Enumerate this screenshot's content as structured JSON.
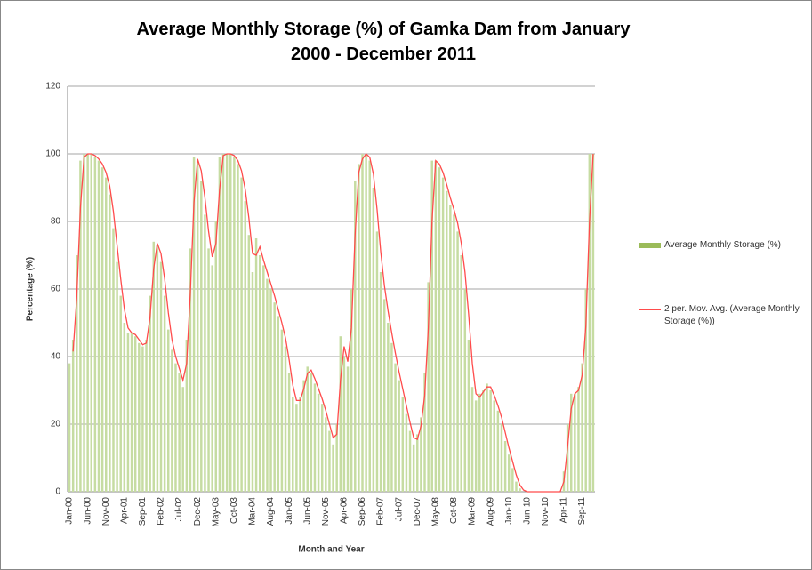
{
  "chart_data": {
    "type": "bar",
    "title": "Average Monthly Storage (%) of Gamka Dam from January 2000 - December 2011",
    "x_label": "Month and Year",
    "y_label": "Percentage (%)",
    "categories": [
      "Jan-00",
      null,
      null,
      null,
      null,
      "Jun-00",
      null,
      null,
      null,
      null,
      "Nov-00",
      null,
      null,
      null,
      null,
      "Apr-01",
      null,
      null,
      null,
      null,
      "Sep-01",
      null,
      null,
      null,
      null,
      "Feb-02",
      null,
      null,
      null,
      null,
      "Jul-02",
      null,
      null,
      null,
      null,
      "Dec-02",
      null,
      null,
      null,
      null,
      "May-03",
      null,
      null,
      null,
      null,
      "Oct-03",
      null,
      null,
      null,
      null,
      "Mar-04",
      null,
      null,
      null,
      null,
      "Aug-04",
      null,
      null,
      null,
      null,
      "Jan-05",
      null,
      null,
      null,
      null,
      "Jun-05",
      null,
      null,
      null,
      null,
      "Nov-05",
      null,
      null,
      null,
      null,
      "Apr-06",
      null,
      null,
      null,
      null,
      "Sep-06",
      null,
      null,
      null,
      null,
      "Feb-07",
      null,
      null,
      null,
      null,
      "Jul-07",
      null,
      null,
      null,
      null,
      "Dec-07",
      null,
      null,
      null,
      null,
      "May-08",
      null,
      null,
      null,
      null,
      "Oct-08",
      null,
      null,
      null,
      null,
      "Mar-09",
      null,
      null,
      null,
      null,
      "Aug-09",
      null,
      null,
      null,
      null,
      "Jan-10",
      null,
      null,
      null,
      null,
      "Jun-10",
      null,
      null,
      null,
      null,
      "Nov-10",
      null,
      null,
      null,
      null,
      "Apr-11",
      null,
      null,
      null,
      null,
      "Sep-11",
      null,
      null,
      null
    ],
    "series": [
      {
        "name": "Average Monthly Storage (%)",
        "type": "bar",
        "color": "#c6dca2",
        "legend_color": "#9bbb59",
        "values": [
          38,
          45,
          70,
          98,
          100,
          100,
          100,
          99,
          98,
          96,
          93,
          88,
          78,
          68,
          58,
          50,
          47,
          47,
          46,
          44,
          43,
          45,
          58,
          74,
          73,
          68,
          58,
          48,
          42,
          38,
          35,
          31,
          45,
          72,
          99,
          98,
          92,
          82,
          72,
          67,
          80,
          99,
          100,
          100,
          100,
          99,
          97,
          93,
          86,
          76,
          65,
          75,
          70,
          67,
          63,
          60,
          56,
          52,
          48,
          43,
          35,
          28,
          26,
          28,
          33,
          37,
          35,
          32,
          29,
          26,
          22,
          18,
          14,
          20,
          46,
          40,
          37,
          60,
          92,
          97,
          100,
          100,
          98,
          90,
          77,
          65,
          57,
          50,
          44,
          38,
          33,
          28,
          23,
          18,
          14,
          17,
          22,
          35,
          62,
          98,
          98,
          96,
          93,
          89,
          85,
          82,
          77,
          70,
          60,
          45,
          31,
          27,
          29,
          30,
          32,
          30,
          27,
          24,
          20,
          15,
          11,
          7,
          3,
          1,
          0,
          0,
          0,
          0,
          0,
          0,
          0,
          0,
          0,
          0,
          0,
          6,
          20,
          29,
          29,
          31,
          38,
          60,
          100,
          100
        ]
      },
      {
        "name": "2 per. Mov. Avg. (Average Monthly Storage (%))",
        "type": "line",
        "color": "#ff4b4b",
        "values": [
          null,
          41.5,
          57.5,
          84,
          99,
          100,
          100,
          99.5,
          98.5,
          97,
          94.5,
          90.5,
          83,
          73,
          63,
          54,
          48.5,
          47,
          46.5,
          45,
          43.5,
          44,
          51.5,
          66,
          73.5,
          70.5,
          63,
          53,
          45,
          40,
          36.5,
          33,
          38,
          58.5,
          85.5,
          98.5,
          95,
          87,
          77,
          69.5,
          73.5,
          89.5,
          99.5,
          100,
          100,
          99.5,
          98,
          95,
          89.5,
          81,
          70.5,
          70,
          72.5,
          68.5,
          65,
          61.5,
          58,
          54,
          50,
          45.5,
          39,
          31.5,
          27,
          27,
          30.5,
          35,
          36,
          33.5,
          30.5,
          27.5,
          24,
          20,
          16,
          17,
          33,
          43,
          38.5,
          48.5,
          76,
          94.5,
          98.5,
          100,
          99,
          94,
          83.5,
          71,
          61,
          53.5,
          47,
          41,
          35.5,
          30.5,
          25.5,
          20.5,
          16,
          15.5,
          19.5,
          28.5,
          48.5,
          80,
          98,
          97,
          94.5,
          91,
          87,
          83.5,
          79.5,
          73.5,
          65,
          52.5,
          38,
          29,
          28,
          29.5,
          31,
          31,
          28.5,
          25.5,
          22,
          17.5,
          13,
          9,
          5,
          2,
          0.5,
          0,
          0,
          0,
          0,
          0,
          0,
          0,
          0,
          0,
          0,
          3,
          13,
          24.5,
          29,
          30,
          34.5,
          49,
          80,
          100
        ]
      }
    ],
    "ylim": [
      0,
      120
    ],
    "yticks": [
      0,
      20,
      40,
      60,
      80,
      100,
      120
    ],
    "grid": true,
    "legend": "right"
  }
}
